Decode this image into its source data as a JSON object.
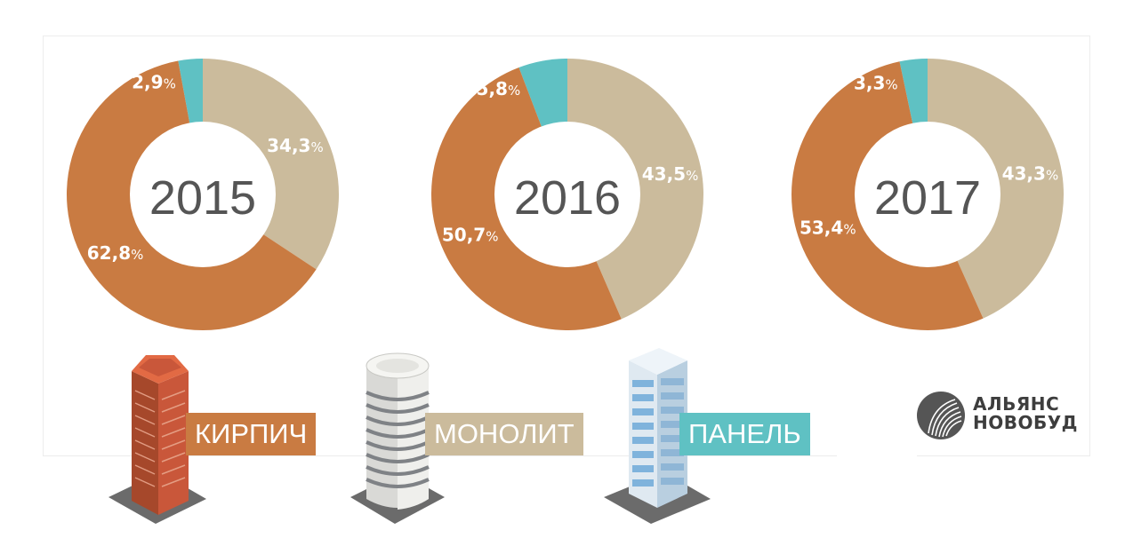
{
  "chart_data": [
    {
      "type": "pie",
      "center_label": "2015",
      "slices": [
        {
          "name": "ПАНЕЛЬ",
          "value": 2.9,
          "label": "2,9",
          "color": "#5fc1c3"
        },
        {
          "name": "МОНОЛИТ",
          "value": 34.3,
          "label": "34,3",
          "color": "#cbbb9c"
        },
        {
          "name": "КИРПИЧ",
          "value": 62.8,
          "label": "62,8",
          "color": "#c97b42"
        }
      ]
    },
    {
      "type": "pie",
      "center_label": "2016",
      "slices": [
        {
          "name": "ПАНЕЛЬ",
          "value": 5.8,
          "label": "5,8",
          "color": "#5fc1c3"
        },
        {
          "name": "МОНОЛИТ",
          "value": 43.5,
          "label": "43,5",
          "color": "#cbbb9c"
        },
        {
          "name": "КИРПИЧ",
          "value": 50.7,
          "label": "50,7",
          "color": "#c97b42"
        }
      ]
    },
    {
      "type": "pie",
      "center_label": "2017",
      "slices": [
        {
          "name": "ПАНЕЛЬ",
          "value": 3.3,
          "label": "3,3",
          "color": "#5fc1c3"
        },
        {
          "name": "МОНОЛИТ",
          "value": 43.3,
          "label": "43,3",
          "color": "#cbbb9c"
        },
        {
          "name": "КИРПИЧ",
          "value": 53.4,
          "label": "53,4",
          "color": "#c97b42"
        }
      ]
    }
  ],
  "percent_sign": "%",
  "legend": [
    {
      "label": "КИРПИЧ",
      "color": "#c97b42",
      "icon": "brick-tower-icon"
    },
    {
      "label": "МОНОЛИТ",
      "color": "#cbbb9c",
      "icon": "monolith-tower-icon"
    },
    {
      "label": "ПАНЕЛЬ",
      "color": "#5fc1c3",
      "icon": "panel-tower-icon"
    }
  ],
  "logo": {
    "line1": "АЛЬЯНС",
    "line2": "НОВОБУД"
  }
}
